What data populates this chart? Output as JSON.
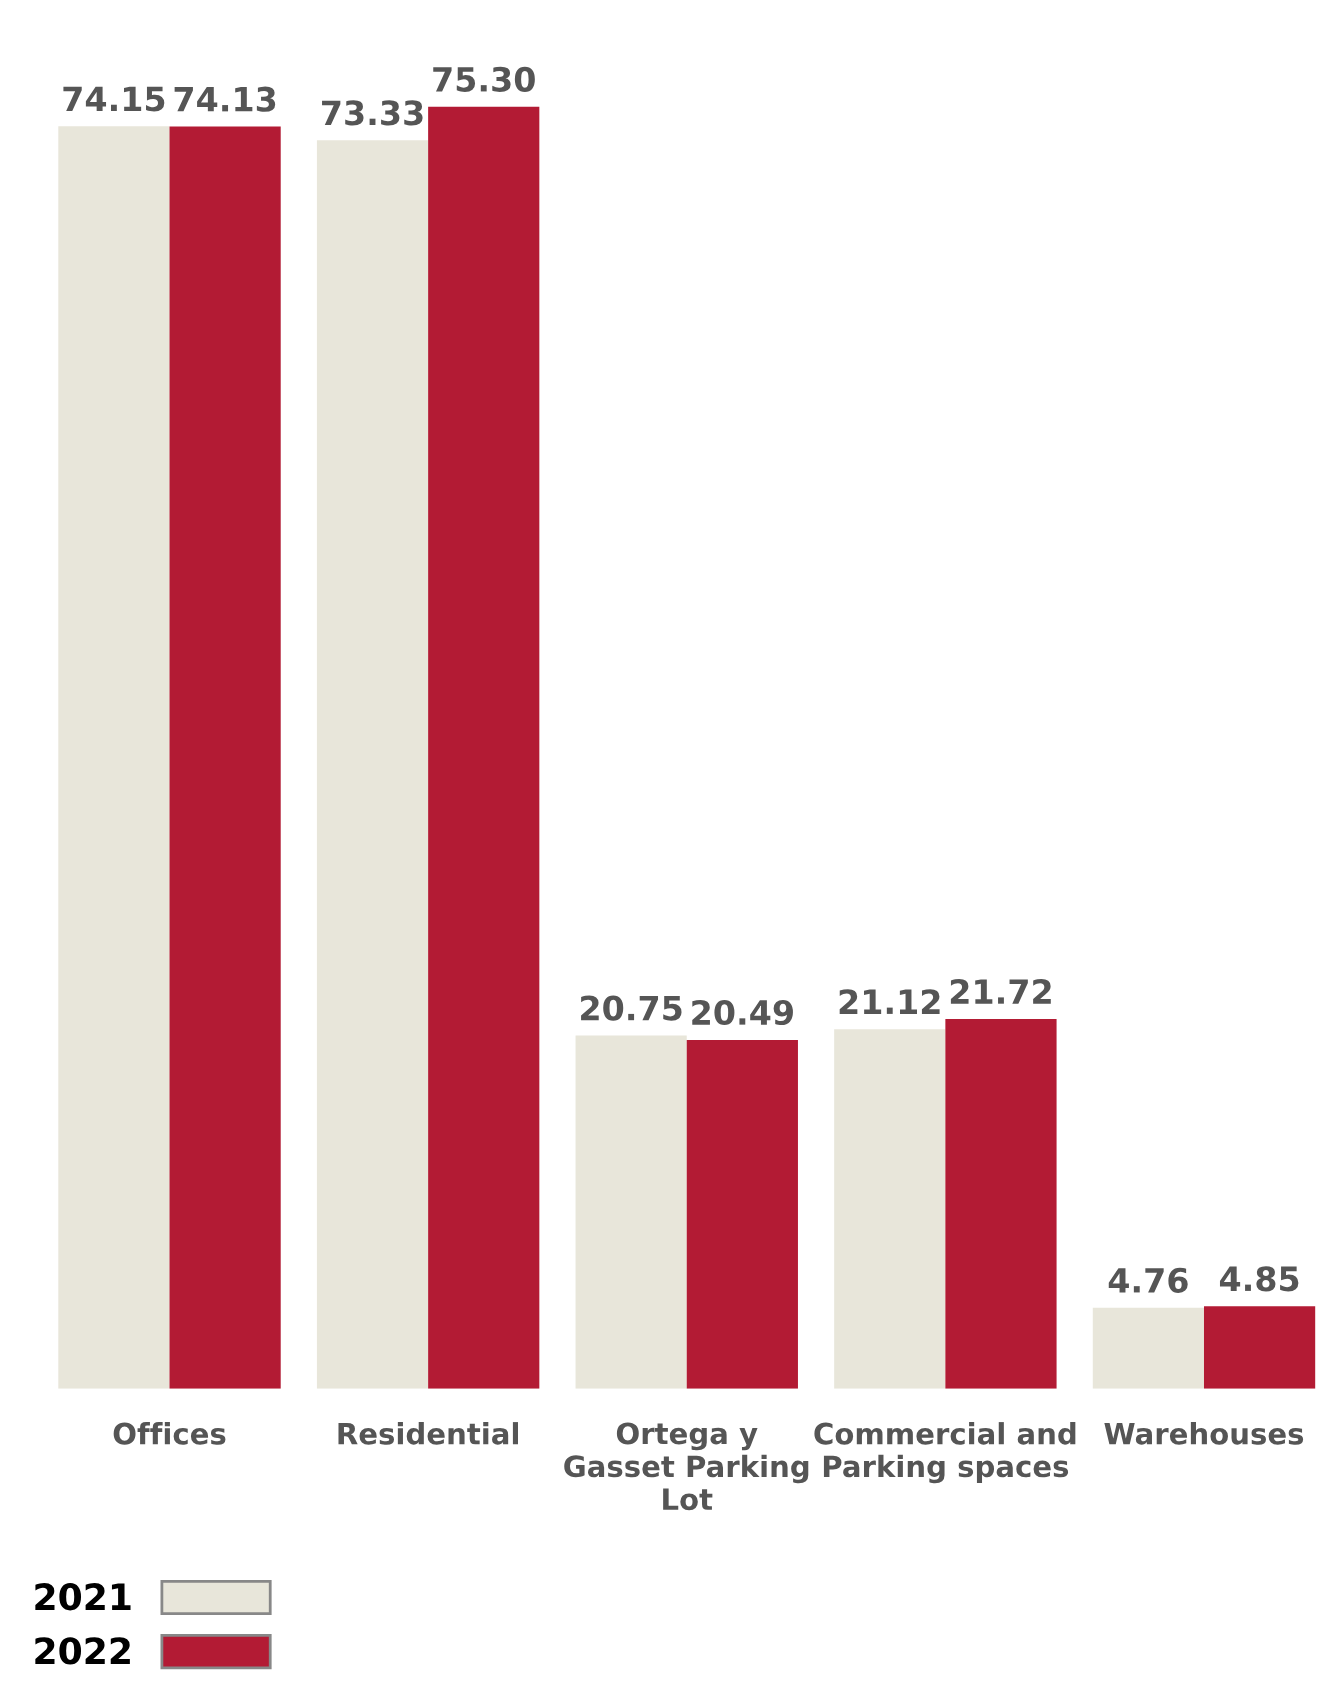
{
  "chart_data": {
    "type": "bar",
    "categories": [
      "Offices",
      "Residential",
      "Ortega y\nGasset Parking\nLot",
      "Commercial and\nParking spaces",
      "Warehouses"
    ],
    "series": [
      {
        "name": "2021",
        "color": "#e8e6da",
        "values": [
          74.15,
          73.33,
          20.75,
          21.12,
          4.76
        ],
        "value_labels": [
          "74.15",
          "73.33",
          "20.75",
          "21.12",
          "4.76"
        ]
      },
      {
        "name": "2022",
        "color": "#b31b34",
        "values": [
          74.13,
          75.3,
          20.49,
          21.72,
          4.85
        ],
        "value_labels": [
          "74.13",
          "75.30",
          "20.49",
          "21.72",
          "4.85"
        ]
      }
    ],
    "legend": "bottom",
    "grid": false
  }
}
